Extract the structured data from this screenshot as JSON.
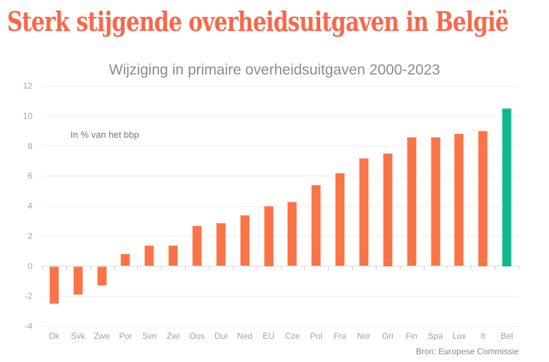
{
  "page": {
    "title": "Sterk stijgende overheidsuitgaven in België",
    "title_color": "#f8684a",
    "background": "#ffffff"
  },
  "chart_data": {
    "type": "bar",
    "title": "Wijziging in primaire overheidsuitgaven 2000-2023",
    "unit_note": "In % van het bbp",
    "source": "Bron: Europese Commissie",
    "categories": [
      "Dk",
      "Svk",
      "Zwe",
      "Por",
      "Svn",
      "Zwi",
      "Oos",
      "Dui",
      "Ned",
      "EU",
      "Cze",
      "Pol",
      "Fra",
      "Nor",
      "Gri",
      "Fin",
      "Spa",
      "Lux",
      "It",
      "Bel"
    ],
    "values": [
      -2.5,
      -1.9,
      -1.3,
      0.8,
      1.4,
      1.4,
      2.7,
      2.9,
      3.4,
      4.0,
      4.3,
      5.4,
      6.2,
      7.2,
      7.5,
      8.6,
      8.6,
      8.8,
      9.0,
      10.5
    ],
    "highlight_category": "Bel",
    "colors": {
      "bar": "#fb7346",
      "highlight": "#12b78e",
      "grid": "#efedec",
      "zero_line": "#e0dcd9"
    },
    "ylim": [
      -4,
      12
    ],
    "yticks": [
      -4,
      -2,
      0,
      2,
      4,
      6,
      8,
      10,
      12
    ],
    "xlabel": "",
    "ylabel": "",
    "grid": "horizontal",
    "legend": "none"
  }
}
